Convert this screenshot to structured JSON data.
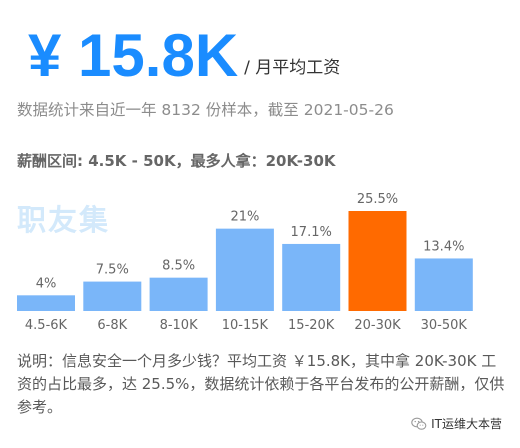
{
  "header": {
    "salary": "¥ 15.8K",
    "salary_suffix": "/ 月平均工资",
    "source": "数据统计来自近一年 8132 份样本，截至 2021-05-26",
    "summary": "薪酬区间: 4.5K - 50K，最多人拿：20K-30K",
    "watermark": "职友集"
  },
  "chart_data": {
    "type": "bar",
    "categories": [
      "4.5-6K",
      "6-8K",
      "8-10K",
      "10-15K",
      "15-20K",
      "20-30K",
      "30-50K"
    ],
    "values": [
      4,
      7.5,
      8.5,
      21,
      17.1,
      25.5,
      13.4
    ],
    "data_labels": [
      "4%",
      "7.5%",
      "8.5%",
      "21%",
      "17.1%",
      "25.5%",
      "13.4%"
    ],
    "highlight_index": 5,
    "ylim": [
      0,
      25.5
    ],
    "grid": false,
    "colors": {
      "bar": "#7ab6f9",
      "highlight": "#ff6a00"
    }
  },
  "description": "说明：信息安全一个月多少钱？平均工资 ￥15.8K，其中拿 20K-30K 工资的占比最多，达 25.5%，数据统计依赖于各平台发布的公开薪酬，仅供参考。",
  "footer": {
    "brand_icon": "wechat-icon",
    "brand": "IT运维大本营"
  }
}
